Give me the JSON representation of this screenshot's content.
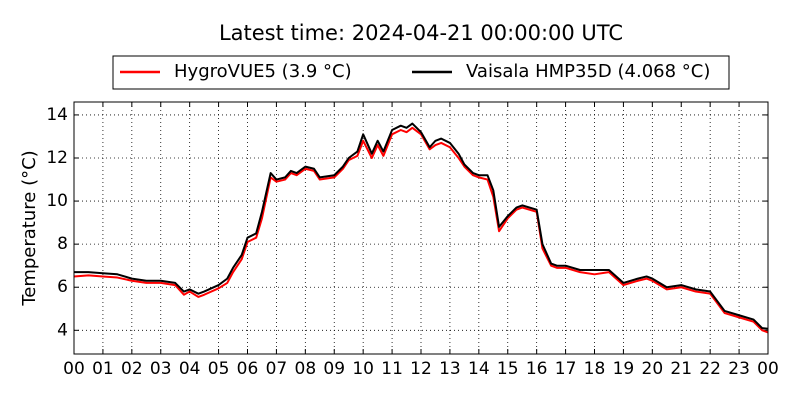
{
  "chart_data": {
    "type": "line",
    "title": "Latest time: 2024-04-21 00:00:00 UTC",
    "ylabel": "Temperature (°C)",
    "x": [
      0,
      0.5,
      1,
      1.5,
      2,
      2.5,
      3,
      3.5,
      3.8,
      4,
      4.3,
      4.5,
      5,
      5.3,
      5.5,
      5.8,
      6,
      6.3,
      6.5,
      6.8,
      7,
      7.3,
      7.5,
      7.7,
      8,
      8.3,
      8.5,
      9,
      9.3,
      9.5,
      9.8,
      10,
      10.3,
      10.5,
      10.7,
      11,
      11.3,
      11.5,
      11.7,
      12,
      12.3,
      12.5,
      12.7,
      13,
      13.3,
      13.5,
      13.8,
      14,
      14.3,
      14.5,
      14.7,
      15,
      15.3,
      15.5,
      16,
      16.2,
      16.5,
      16.7,
      17,
      17.5,
      18,
      18.5,
      19,
      19.5,
      19.8,
      20,
      20.5,
      21,
      21.5,
      22,
      22.5,
      23,
      23.5,
      23.8,
      24
    ],
    "series": [
      {
        "name": "HygroVUE5 (3.9 °C)",
        "color": "#ff0000",
        "values": [
          6.5,
          6.55,
          6.5,
          6.45,
          6.3,
          6.2,
          6.2,
          6.1,
          5.65,
          5.8,
          5.55,
          5.65,
          5.95,
          6.2,
          6.7,
          7.3,
          8.1,
          8.3,
          9.2,
          11.1,
          10.9,
          11.0,
          11.3,
          11.2,
          11.5,
          11.4,
          11.0,
          11.1,
          11.5,
          11.9,
          12.1,
          12.8,
          12.0,
          12.6,
          12.1,
          13.1,
          13.3,
          13.2,
          13.4,
          13.1,
          12.4,
          12.6,
          12.7,
          12.5,
          12.0,
          11.6,
          11.2,
          11.1,
          11.0,
          10.2,
          8.6,
          9.2,
          9.6,
          9.7,
          9.5,
          7.8,
          7.0,
          6.9,
          6.9,
          6.7,
          6.6,
          6.7,
          6.1,
          6.3,
          6.4,
          6.3,
          5.9,
          6.0,
          5.8,
          5.7,
          4.8,
          4.6,
          4.4,
          4.0,
          3.9
        ]
      },
      {
        "name": "Vaisala HMP35D (4.068 °C)",
        "color": "#000000",
        "values": [
          6.7,
          6.7,
          6.65,
          6.6,
          6.4,
          6.3,
          6.3,
          6.2,
          5.8,
          5.9,
          5.7,
          5.8,
          6.1,
          6.4,
          6.9,
          7.5,
          8.3,
          8.5,
          9.5,
          11.3,
          11.0,
          11.1,
          11.4,
          11.3,
          11.6,
          11.5,
          11.1,
          11.2,
          11.6,
          12.0,
          12.3,
          13.1,
          12.2,
          12.8,
          12.3,
          13.3,
          13.5,
          13.4,
          13.6,
          13.2,
          12.5,
          12.8,
          12.9,
          12.7,
          12.2,
          11.7,
          11.3,
          11.2,
          11.2,
          10.5,
          8.8,
          9.3,
          9.7,
          9.8,
          9.6,
          8.0,
          7.1,
          7.0,
          7.0,
          6.8,
          6.8,
          6.8,
          6.2,
          6.4,
          6.5,
          6.4,
          6.0,
          6.1,
          5.9,
          5.8,
          4.9,
          4.7,
          4.5,
          4.1,
          4.07
        ]
      }
    ],
    "xlim": [
      0,
      24
    ],
    "xticks": [
      {
        "value": 0,
        "label": "00"
      },
      {
        "value": 1,
        "label": "01"
      },
      {
        "value": 2,
        "label": "02"
      },
      {
        "value": 3,
        "label": "03"
      },
      {
        "value": 4,
        "label": "04"
      },
      {
        "value": 5,
        "label": "05"
      },
      {
        "value": 6,
        "label": "06"
      },
      {
        "value": 7,
        "label": "07"
      },
      {
        "value": 8,
        "label": "08"
      },
      {
        "value": 9,
        "label": "09"
      },
      {
        "value": 10,
        "label": "10"
      },
      {
        "value": 11,
        "label": "11"
      },
      {
        "value": 12,
        "label": "12"
      },
      {
        "value": 13,
        "label": "13"
      },
      {
        "value": 14,
        "label": "14"
      },
      {
        "value": 15,
        "label": "15"
      },
      {
        "value": 16,
        "label": "16"
      },
      {
        "value": 17,
        "label": "17"
      },
      {
        "value": 18,
        "label": "18"
      },
      {
        "value": 19,
        "label": "19"
      },
      {
        "value": 20,
        "label": "20"
      },
      {
        "value": 21,
        "label": "21"
      },
      {
        "value": 22,
        "label": "22"
      },
      {
        "value": 23,
        "label": "23"
      },
      {
        "value": 24,
        "label": "00"
      }
    ],
    "ylim": [
      2.9,
      14.6
    ],
    "yticks": [
      4,
      6,
      8,
      10,
      12,
      14
    ],
    "grid": true,
    "legend": "top"
  }
}
